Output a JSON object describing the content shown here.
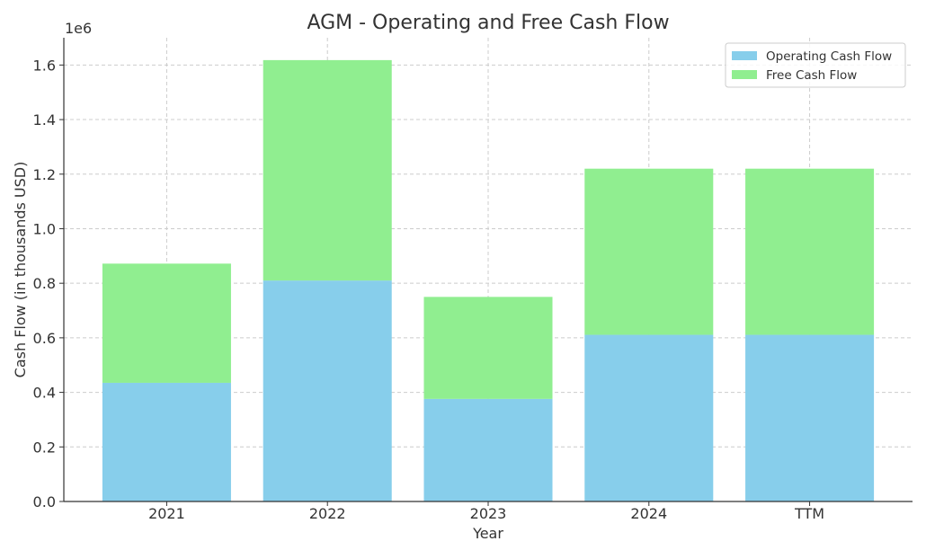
{
  "chart_data": {
    "type": "bar",
    "stacked": true,
    "title": "AGM - Operating and Free Cash Flow",
    "xlabel": "Year",
    "ylabel": "Cash Flow (in thousands USD)",
    "y_multiplier_label": "1e6",
    "categories": [
      "2021",
      "2022",
      "2023",
      "2024",
      "TTM"
    ],
    "ylim": [
      0,
      1700000
    ],
    "yticks": [
      0,
      200000,
      400000,
      600000,
      800000,
      1000000,
      1200000,
      1400000,
      1600000
    ],
    "ytick_labels": [
      "0.0",
      "0.2",
      "0.4",
      "0.6",
      "0.8",
      "1.0",
      "1.2",
      "1.4",
      "1.6"
    ],
    "grid": true,
    "legend_position": "top-right",
    "series": [
      {
        "name": "Operating Cash Flow",
        "color": "#87CEEB",
        "values": [
          435000,
          810000,
          376000,
          611000,
          611000
        ]
      },
      {
        "name": "Free Cash Flow",
        "color": "#90EE90",
        "values": [
          437000,
          808000,
          374000,
          609000,
          609000
        ]
      }
    ]
  }
}
